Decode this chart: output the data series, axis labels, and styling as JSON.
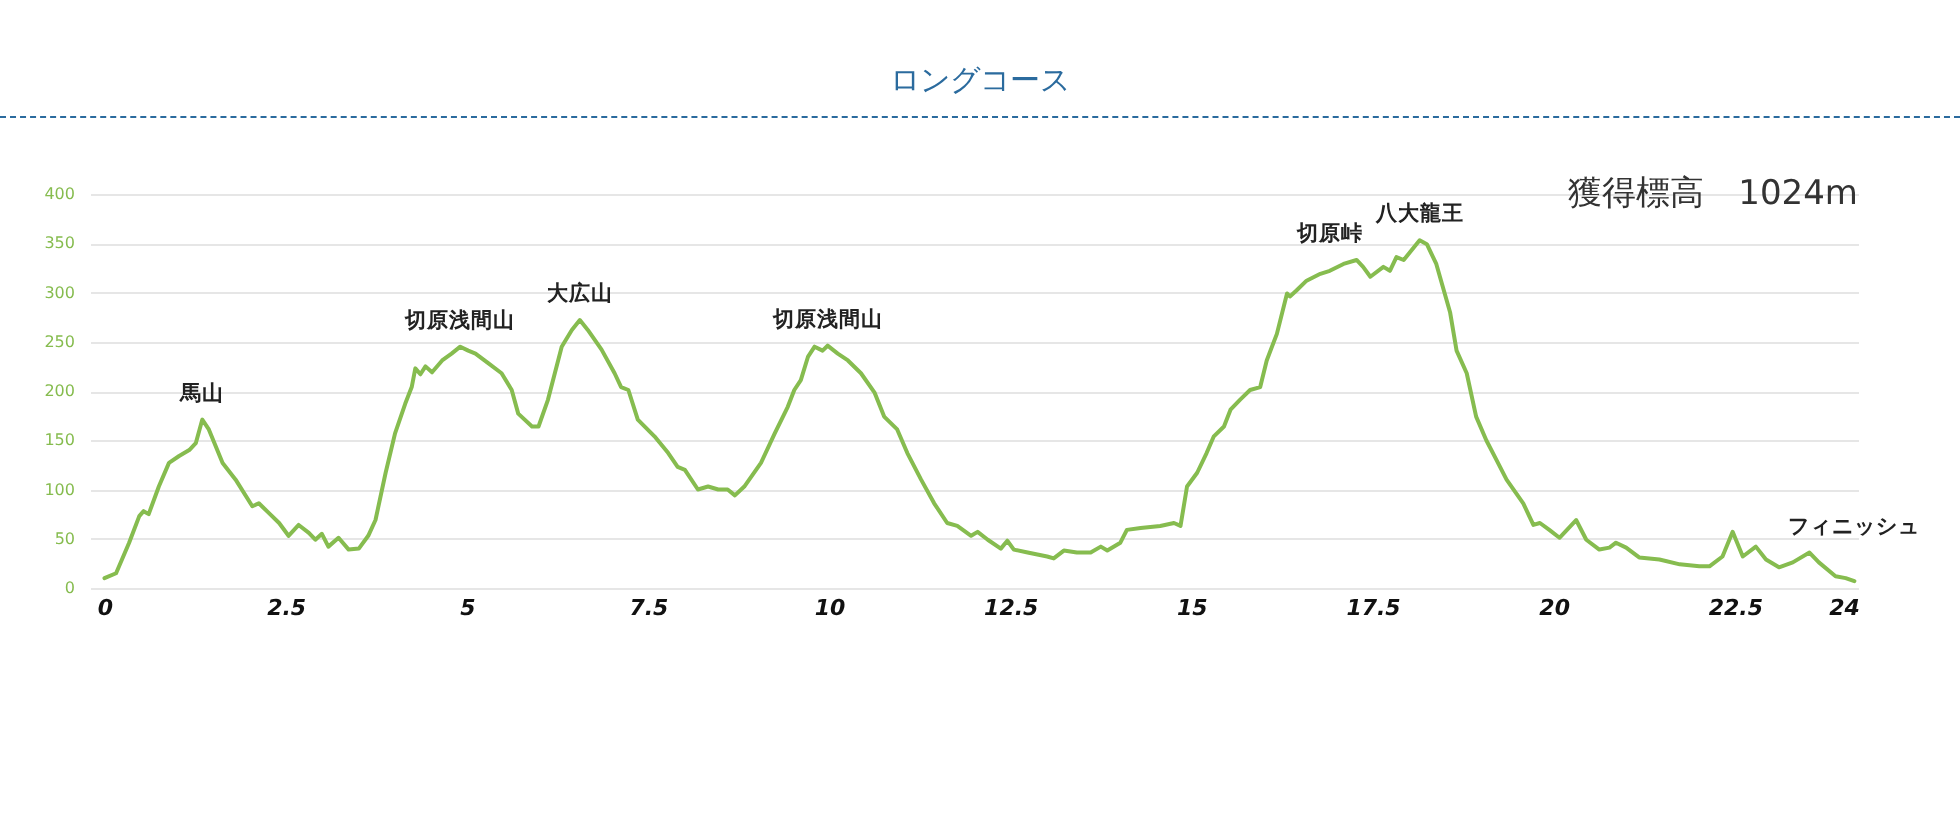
{
  "chart_data": {
    "type": "line",
    "title": "ロングコース",
    "annotations": [
      "獲得標高　1024m",
      {
        "text": "馬山",
        "x": 1.35,
        "y": 171
      },
      {
        "text": "切原浅間山",
        "x": 4.91,
        "y": 245
      },
      {
        "text": "大広山",
        "x": 6.56,
        "y": 272
      },
      {
        "text": "切原浅間山",
        "x": 9.98,
        "y": 246
      },
      {
        "text": "切原峠",
        "x": 16.91,
        "y": 322
      },
      {
        "text": "八大龍王",
        "x": 18.15,
        "y": 353
      },
      {
        "text": "フィニッシュ",
        "x": 24.15,
        "y": 7
      }
    ],
    "x": [
      0,
      0.16,
      0.34,
      0.48,
      0.54,
      0.61,
      0.75,
      0.89,
      1.03,
      1.17,
      1.26,
      1.35,
      1.44,
      1.63,
      1.81,
      2.04,
      2.13,
      2.27,
      2.41,
      2.54,
      2.68,
      2.82,
      2.91,
      3.0,
      3.09,
      3.23,
      3.37,
      3.51,
      3.64,
      3.74,
      3.88,
      4.01,
      4.15,
      4.24,
      4.29,
      4.36,
      4.43,
      4.52,
      4.66,
      4.79,
      4.91,
      5.02,
      5.12,
      5.3,
      5.48,
      5.62,
      5.71,
      5.9,
      5.99,
      6.12,
      6.31,
      6.45,
      6.56,
      6.67,
      6.86,
      7.04,
      7.13,
      7.23,
      7.36,
      7.59,
      7.78,
      7.91,
      8.01,
      8.19,
      8.33,
      8.47,
      8.6,
      8.7,
      8.83,
      9.06,
      9.25,
      9.43,
      9.52,
      9.61,
      9.71,
      9.8,
      9.91,
      9.98,
      10.12,
      10.26,
      10.44,
      10.63,
      10.76,
      10.94,
      11.08,
      11.27,
      11.45,
      11.63,
      11.77,
      11.96,
      12.05,
      12.19,
      12.37,
      12.46,
      12.55,
      12.74,
      13.01,
      13.1,
      13.24,
      13.42,
      13.61,
      13.75,
      13.84,
      14.02,
      14.11,
      14.3,
      14.57,
      14.76,
      14.85,
      14.94,
      15.08,
      15.21,
      15.31,
      15.45,
      15.54,
      15.67,
      15.81,
      15.95,
      16.04,
      16.18,
      16.32,
      16.36,
      16.45,
      16.59,
      16.78,
      16.91,
      17.1,
      17.28,
      17.37,
      17.47,
      17.65,
      17.74,
      17.83,
      17.93,
      18.15,
      18.25,
      18.38,
      18.57,
      18.66,
      18.8,
      18.93,
      19.07,
      19.21,
      19.35,
      19.58,
      19.72,
      19.81,
      19.94,
      20.08,
      20.31,
      20.45,
      20.63,
      20.77,
      20.86,
      21.0,
      21.18,
      21.46,
      21.74,
      22.01,
      22.15,
      22.33,
      22.47,
      22.61,
      22.79,
      22.93,
      23.11,
      23.3,
      23.53,
      23.66,
      23.89,
      24.03,
      24.15
    ],
    "series": [
      {
        "color": "#86bc4f",
        "values": [
          10,
          15,
          46,
          73,
          78,
          75,
          103,
          127,
          134,
          140,
          147,
          171,
          161,
          127,
          110,
          83,
          86,
          76,
          66,
          53,
          64,
          56,
          49,
          55,
          42,
          51,
          39,
          40,
          53,
          69,
          117,
          157,
          187,
          204,
          223,
          217,
          225,
          219,
          231,
          238,
          245,
          241,
          238,
          228,
          218,
          201,
          177,
          164,
          164,
          191,
          245,
          262,
          272,
          262,
          242,
          218,
          204,
          201,
          171,
          154,
          137,
          123,
          120,
          100,
          103,
          100,
          100,
          94,
          103,
          127,
          157,
          184,
          201,
          211,
          235,
          245,
          241,
          246,
          238,
          231,
          218,
          198,
          174,
          161,
          137,
          110,
          86,
          66,
          63,
          53,
          57,
          49,
          40,
          48,
          39,
          36,
          32,
          30,
          38,
          36,
          36,
          42,
          38,
          46,
          59,
          61,
          63,
          66,
          63,
          103,
          117,
          137,
          154,
          164,
          181,
          191,
          201,
          204,
          231,
          258,
          299,
          296,
          302,
          312,
          319,
          322,
          329,
          333,
          326,
          316,
          326,
          322,
          336,
          333,
          353,
          349,
          329,
          280,
          241,
          218,
          174,
          150,
          130,
          110,
          86,
          64,
          66,
          59,
          51,
          69,
          49,
          39,
          41,
          46,
          41,
          31,
          29,
          24,
          22,
          22,
          32,
          57,
          32,
          42,
          29,
          21,
          26,
          36,
          26,
          12,
          10,
          7
        ]
      }
    ],
    "xlim": [
      -0.2,
      24.2
    ],
    "xticks": [
      0,
      2.5,
      5,
      7.5,
      10,
      12.5,
      15,
      17.5,
      20,
      22.5,
      24
    ],
    "ylim": [
      0,
      400
    ],
    "yticks": [
      0,
      50,
      100,
      150,
      200,
      250,
      300,
      350,
      400
    ],
    "grid": "y"
  }
}
